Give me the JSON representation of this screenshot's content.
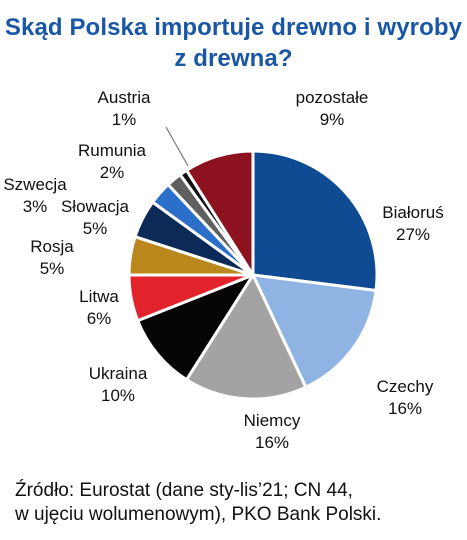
{
  "title_line1": "Skąd Polska importuje drewno i wyroby",
  "title_line2": "z drewna?",
  "chart_data": {
    "type": "pie",
    "title": "Skąd Polska importuje drewno i wyroby z drewna?",
    "unit": "%",
    "slices": [
      {
        "label": "Białoruś",
        "value": 27,
        "value_label": "27%",
        "color": "#0f4b93"
      },
      {
        "label": "Czechy",
        "value": 16,
        "value_label": "16%",
        "color": "#8fb4e3"
      },
      {
        "label": "Niemcy",
        "value": 16,
        "value_label": "16%",
        "color": "#a3a3a3"
      },
      {
        "label": "Ukraina",
        "value": 10,
        "value_label": "10%",
        "color": "#050505"
      },
      {
        "label": "Litwa",
        "value": 6,
        "value_label": "6%",
        "color": "#e2232b"
      },
      {
        "label": "Rosja",
        "value": 5,
        "value_label": "5%",
        "color": "#b9871c"
      },
      {
        "label": "Słowacja",
        "value": 5,
        "value_label": "5%",
        "color": "#0b2a57"
      },
      {
        "label": "Szwecja",
        "value": 3,
        "value_label": "3%",
        "color": "#2b6fca"
      },
      {
        "label": "Rumunia",
        "value": 2,
        "value_label": "2%",
        "color": "#5f5f5f"
      },
      {
        "label": "Austria",
        "value": 1,
        "value_label": "1%",
        "color": "#111111"
      },
      {
        "label": "pozostałe",
        "value": 9,
        "value_label": "9%",
        "color": "#8c1220"
      }
    ]
  },
  "source_line1": "Źródło: Eurostat (dane sty-lis’21; CN 44,",
  "source_line2": "w ujęciu wolumenowym), PKO Bank Polski."
}
